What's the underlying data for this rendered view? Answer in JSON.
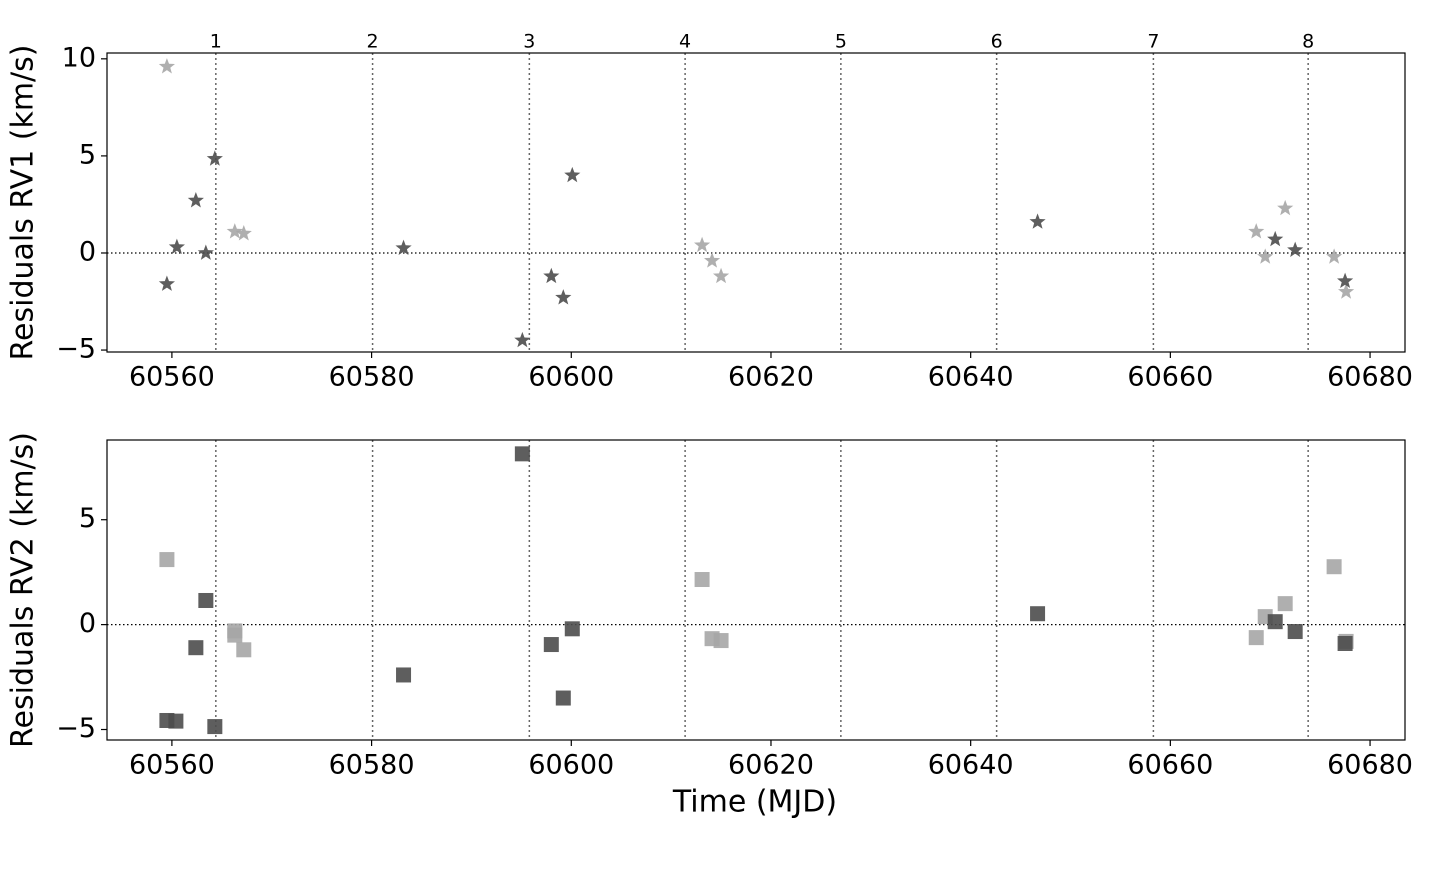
{
  "chart_data": [
    {
      "type": "scatter",
      "marker": "star",
      "ylabel": "Residuals RV1 (km/s)",
      "xlim": [
        60553.5,
        60683.5
      ],
      "ylim": [
        -5.1,
        10.3
      ],
      "xticks": [
        60560,
        60580,
        60600,
        60620,
        60640,
        60660,
        60680
      ],
      "yticks": [
        -5,
        0,
        5,
        10
      ],
      "hline": 0,
      "vlines": [
        60564.4,
        60580.1,
        60595.8,
        60611.4,
        60627.0,
        60642.6,
        60658.3,
        60673.8
      ],
      "vline_labels": [
        "1",
        "2",
        "3",
        "4",
        "5",
        "6",
        "7",
        "8"
      ],
      "series": [
        {
          "color": "#a6a6a6",
          "x": [
            60559.5,
            60566.3,
            60567.2,
            60613.1,
            60614.1,
            60615.0,
            60668.6,
            60669.5,
            60671.5,
            60676.4,
            60677.6
          ],
          "values": [
            9.6,
            1.1,
            1.0,
            0.4,
            -0.4,
            -1.2,
            1.1,
            -0.2,
            2.3,
            -0.2,
            -2.0
          ]
        },
        {
          "color": "#4d4d4d",
          "x": [
            60559.5,
            60560.5,
            60562.4,
            60563.4,
            60564.3,
            60583.2,
            60595.1,
            60598.0,
            60599.2,
            60600.1,
            60646.7,
            60670.5,
            60672.5,
            60677.5
          ],
          "values": [
            -1.6,
            0.3,
            2.7,
            0.0,
            4.85,
            0.25,
            -4.5,
            -1.2,
            -2.3,
            4.0,
            1.6,
            0.7,
            0.15,
            -1.45
          ]
        }
      ]
    },
    {
      "type": "scatter",
      "marker": "square",
      "ylabel": "Residuals RV2 (km/s)",
      "xlabel": "Time (MJD)",
      "xlim": [
        60553.5,
        60683.5
      ],
      "ylim": [
        -5.5,
        8.8
      ],
      "xticks": [
        60560,
        60580,
        60600,
        60620,
        60640,
        60660,
        60680
      ],
      "yticks": [
        -5,
        0,
        5
      ],
      "hline": 0,
      "vlines": [
        60564.4,
        60580.1,
        60595.8,
        60611.4,
        60627.0,
        60642.6,
        60658.3,
        60673.8
      ],
      "series": [
        {
          "color": "#a6a6a6",
          "x": [
            60559.5,
            60566.3,
            60566.3,
            60567.2,
            60613.1,
            60614.1,
            60615.0,
            60668.6,
            60669.5,
            60671.5,
            60676.4,
            60677.6
          ],
          "values": [
            3.1,
            -0.3,
            -0.5,
            -1.2,
            2.15,
            -0.67,
            -0.76,
            -0.62,
            0.38,
            1.0,
            2.76,
            -0.8
          ]
        },
        {
          "color": "#4d4d4d",
          "x": [
            60559.5,
            60560.4,
            60562.4,
            60563.4,
            60564.3,
            60583.2,
            60595.1,
            60598.0,
            60599.2,
            60600.1,
            60646.7,
            60670.5,
            60672.5,
            60677.5
          ],
          "values": [
            -4.57,
            -4.6,
            -1.1,
            1.15,
            -4.86,
            -2.4,
            8.14,
            -0.95,
            -3.5,
            -0.2,
            0.52,
            0.14,
            -0.33,
            -0.9
          ]
        }
      ]
    }
  ]
}
